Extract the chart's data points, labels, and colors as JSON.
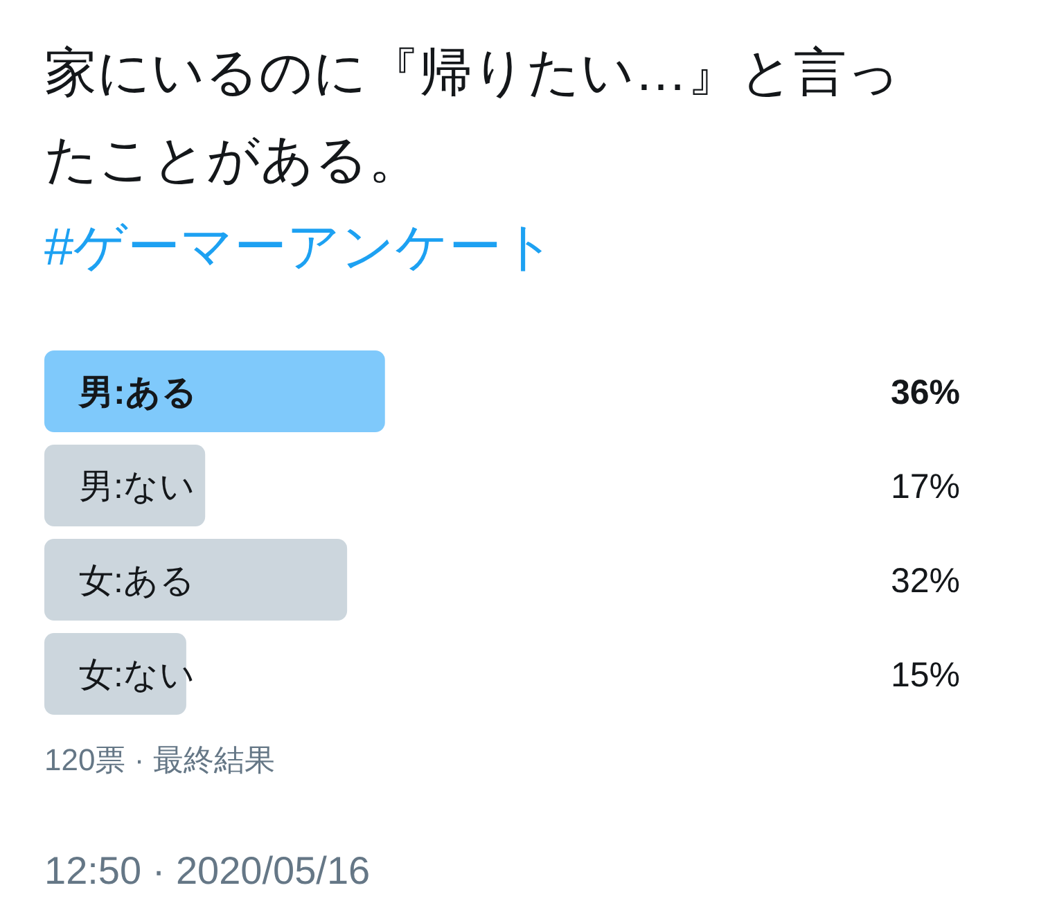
{
  "chart_data": {
    "type": "bar",
    "orientation": "horizontal",
    "title": "家にいるのに『帰りたい…』と言ったことがある。",
    "subtitle": "#ゲーマーアンケート",
    "categories": [
      "男:ある",
      "男:ない",
      "女:ある",
      "女:ない"
    ],
    "values": [
      36,
      17,
      32,
      15
    ],
    "value_labels": [
      "36%",
      "17%",
      "32%",
      "15%"
    ],
    "colors": [
      "#7fc9fb",
      "#ccd6dd",
      "#ccd6dd",
      "#ccd6dd"
    ],
    "annotations": [
      "120票 · 最終結果",
      "12:50 · 2020/05/16"
    ]
  }
}
